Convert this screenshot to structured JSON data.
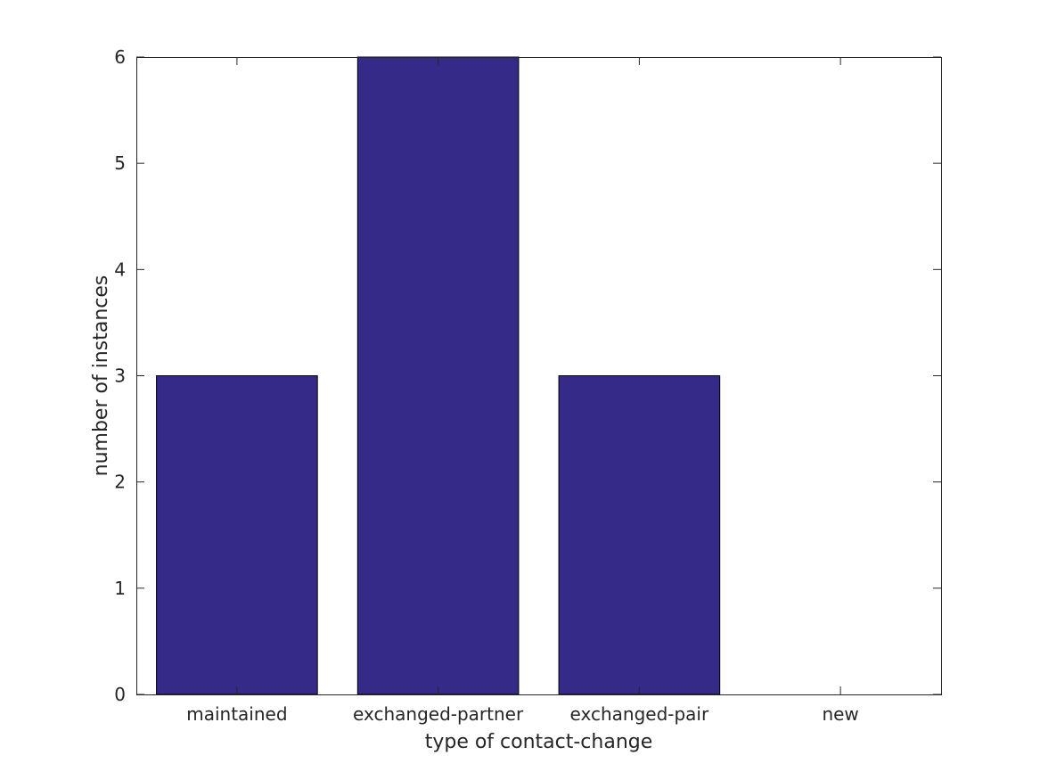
{
  "chart_data": {
    "type": "bar",
    "categories": [
      "maintained",
      "exchanged-partner",
      "exchanged-pair",
      "new"
    ],
    "values": [
      3,
      6,
      3,
      0
    ],
    "xlabel": "type of contact-change",
    "ylabel": "number of instances",
    "ylim": [
      0,
      6
    ],
    "yticks": [
      0,
      1,
      2,
      3,
      4,
      5,
      6
    ],
    "grid": false,
    "box": true,
    "bar_color": "#352a87",
    "edge_color": "#000000"
  }
}
